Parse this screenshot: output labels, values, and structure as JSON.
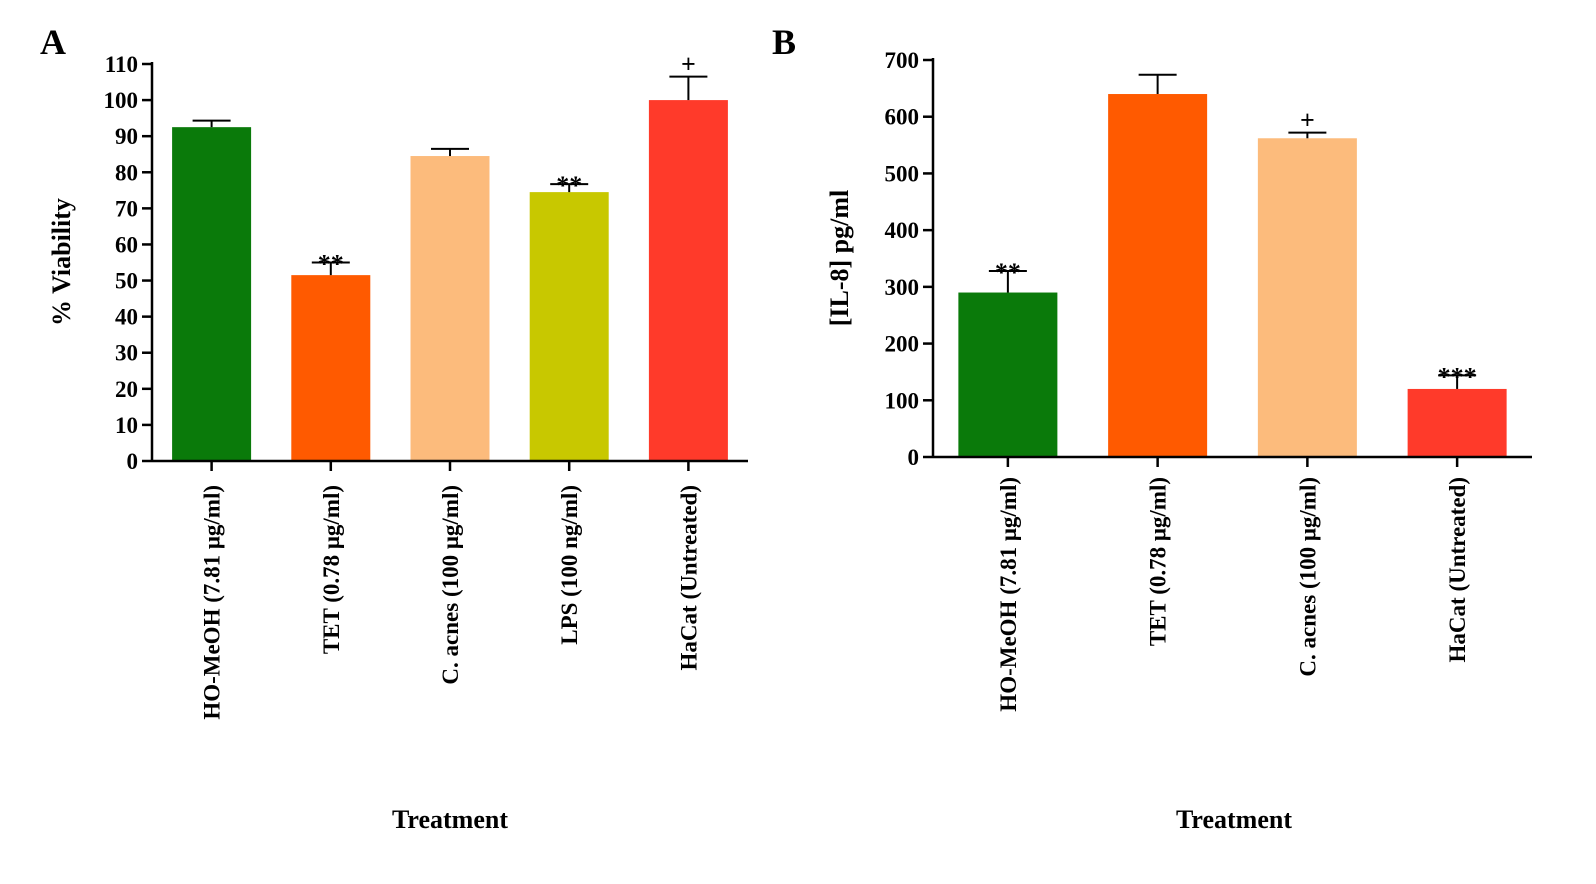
{
  "chart_data": [
    {
      "type": "bar",
      "panel": "A",
      "title": "",
      "xlabel": "Treatment",
      "ylabel": "% Viability",
      "ylim": [
        0,
        110
      ],
      "yticks": [
        0,
        10,
        20,
        30,
        40,
        50,
        60,
        70,
        80,
        90,
        100,
        110
      ],
      "categories": [
        "HO-MeOH (7.81  μg/ml)",
        "TET (0.78 μg/ml)",
        "C. acnes (100 μg/ml)",
        "LPS (100 ng/ml)",
        "HaCat (Untreated)"
      ],
      "values": [
        92.5,
        51.5,
        84.5,
        74.5,
        100
      ],
      "errors": [
        1.8,
        3.5,
        2.0,
        2.2,
        6.5
      ],
      "annotations": [
        "",
        "**",
        "",
        "**",
        "+"
      ],
      "colors": [
        "#0a7a0a",
        "#ff5a00",
        "#fcbb7c",
        "#c8c800",
        "#ff3a2a"
      ]
    },
    {
      "type": "bar",
      "panel": "B",
      "title": "",
      "xlabel": "Treatment",
      "ylabel": "[IL-8] pg/ml",
      "ylim": [
        0,
        700
      ],
      "yticks": [
        0,
        100,
        200,
        300,
        400,
        500,
        600,
        700
      ],
      "categories": [
        "HO-MeOH (7.81  μg/ml)",
        "TET (0.78  μg/ml)",
        "C. acnes (100 μg/ml)",
        "HaCat (Untreated)"
      ],
      "values": [
        290,
        640,
        562,
        120
      ],
      "errors": [
        38,
        34,
        10,
        24
      ],
      "annotations": [
        "**",
        "",
        "+",
        "***"
      ],
      "colors": [
        "#0a7a0a",
        "#ff5a00",
        "#fcbb7c",
        "#ff3a2a"
      ]
    }
  ]
}
